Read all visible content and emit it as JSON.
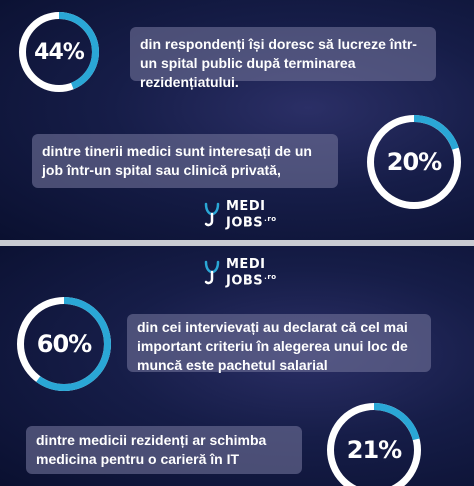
{
  "colors": {
    "ring_accent": "#2aa7d6",
    "ring_track": "#ffffff",
    "box_bg": "#6e7096",
    "logo_accent": "#2aa7d6"
  },
  "top_panel": {
    "stat1": {
      "value": "44%",
      "fraction": 0.44,
      "text": "din respondenți își doresc să lucreze într-un spital public după terminarea rezidențiatului."
    },
    "stat2": {
      "value": "20%",
      "fraction": 0.2,
      "text": "dintre tinerii medici sunt interesați de un job într-un spital sau clinică privată,"
    },
    "logo": {
      "line1": "MEDI",
      "line2": "JOBS",
      "suffix": ".ro",
      "icon": "medijobs-logo-icon"
    }
  },
  "bottom_panel": {
    "logo": {
      "line1": "MEDI",
      "line2": "JOBS",
      "suffix": ".ro",
      "icon": "medijobs-logo-icon"
    },
    "stat3": {
      "value": "60%",
      "fraction": 0.6,
      "text": "din cei intervievați au declarat că cel mai important criteriu în alegerea unui loc de muncă este pachetul salarial"
    },
    "stat4": {
      "value": "21%",
      "fraction": 0.21,
      "text": "dintre medicii rezidenți ar schimba medicina pentru o carieră în IT"
    }
  }
}
